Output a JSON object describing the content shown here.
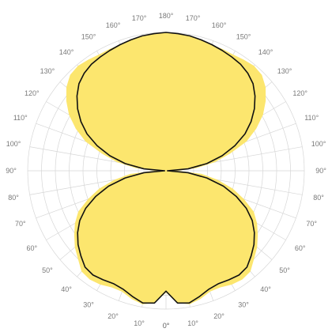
{
  "chart_data": {
    "type": "polar-line",
    "angle_unit": "deg",
    "zero_direction": "bottom",
    "angle_labels": {
      "right": [
        "0°",
        "10°",
        "20°",
        "30°",
        "40°",
        "50°",
        "60°",
        "70°",
        "80°",
        "90°",
        "100°",
        "110°",
        "120°",
        "130°",
        "140°",
        "150°",
        "160°",
        "170°",
        "180°"
      ],
      "left": [
        "0°",
        "10°",
        "20°",
        "30°",
        "40°",
        "50°",
        "60°",
        "70°",
        "80°",
        "90°",
        "100°",
        "110°",
        "120°",
        "130°",
        "140°",
        "150°",
        "160°",
        "170°"
      ]
    },
    "radial_labels": [
      "",
      "",
      "",
      ""
    ],
    "r_max": 100,
    "r_ticks": [
      10,
      20,
      30,
      40,
      50,
      60,
      70,
      80,
      90,
      100
    ],
    "grid": true,
    "series": [
      {
        "style": "filled",
        "color": "#fce66e",
        "angles": [
          0,
          5,
          10,
          15,
          20,
          25,
          30,
          35,
          40,
          45,
          50,
          55,
          60,
          65,
          70,
          75,
          80,
          85,
          90,
          95,
          100,
          105,
          110,
          115,
          120,
          125,
          130,
          135,
          140,
          145,
          150,
          155,
          160,
          165,
          170,
          175,
          180
        ],
        "values": [
          88,
          96,
          98,
          96,
          93,
          93,
          95,
          96,
          95,
          90,
          86,
          81,
          76,
          70,
          60,
          50,
          38,
          26,
          8,
          22,
          36,
          48,
          62,
          72,
          81,
          88,
          94,
          98,
          99,
          98,
          97,
          97,
          97,
          98,
          99,
          99.5,
          100
        ]
      },
      {
        "style": "line",
        "color": "#111111",
        "angles": [
          0,
          5,
          10,
          15,
          20,
          25,
          30,
          35,
          40,
          45,
          50,
          55,
          60,
          65,
          70,
          75,
          80,
          85,
          90,
          95,
          100,
          105,
          110,
          115,
          120,
          125,
          130,
          135,
          140,
          145,
          150,
          155,
          160,
          165,
          170,
          175,
          180
        ],
        "values": [
          87,
          96,
          97,
          94,
          91,
          90,
          91,
          92,
          91,
          87,
          83,
          78,
          72,
          64,
          54,
          43,
          30,
          16,
          1,
          16,
          30,
          42,
          53,
          63,
          71,
          78,
          84,
          89,
          92,
          94,
          95,
          96,
          97,
          98,
          99,
          99.5,
          100
        ]
      }
    ],
    "colors": {
      "grid": "#d6d6d6",
      "angle_text": "#7a7a7a",
      "fill": "#fce66e",
      "line": "#111111"
    }
  }
}
